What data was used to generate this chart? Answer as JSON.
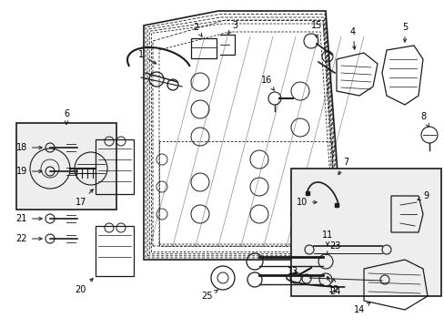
{
  "bg_color": "#ffffff",
  "fig_width": 4.89,
  "fig_height": 3.6,
  "dpi": 100,
  "line_color": "#1a1a1a",
  "label_fontsize": 7.0
}
